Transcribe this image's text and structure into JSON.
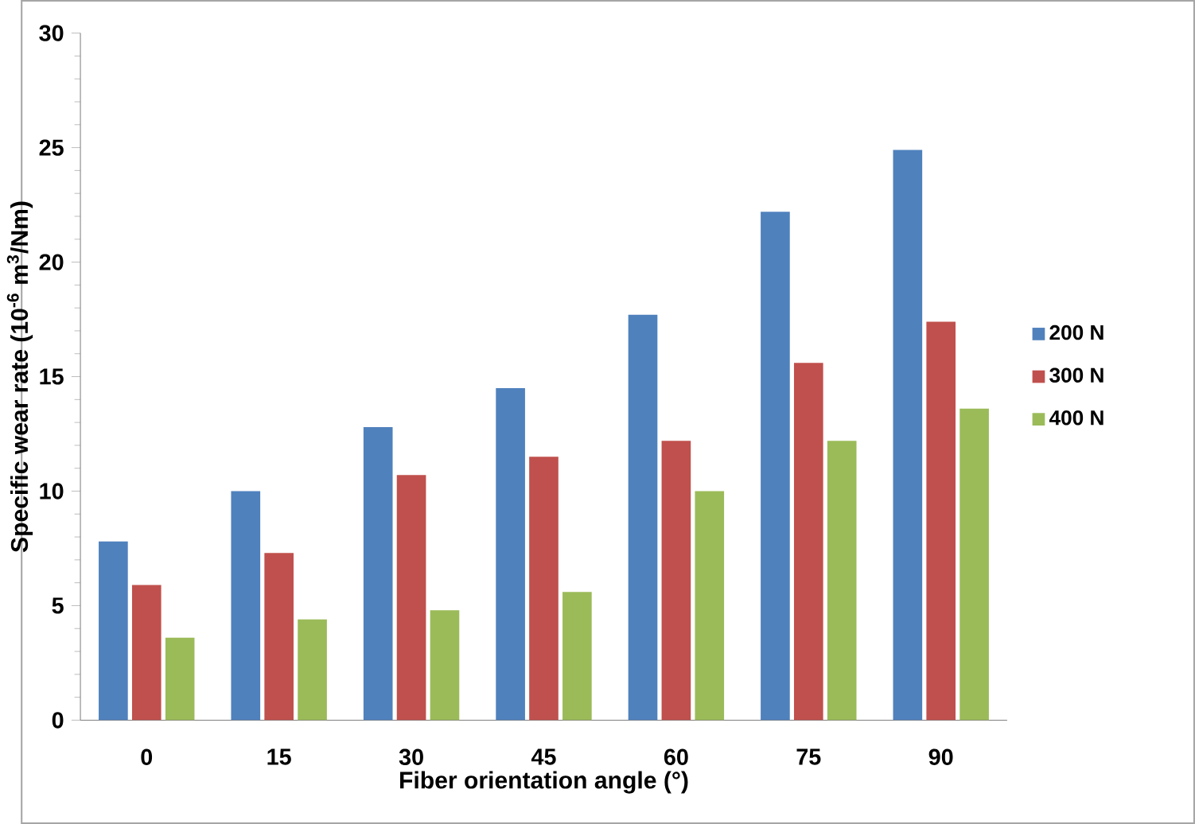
{
  "chart_data": {
    "type": "bar",
    "xlabel": "Fiber orientation angle (°)",
    "ylabel": "Specific wear rate (10$^{-6}$ m$^{3}$/Nm)",
    "categories": [
      "0",
      "15",
      "30",
      "45",
      "60",
      "75",
      "90"
    ],
    "series": [
      {
        "name": "200 N",
        "color": "#4f81bd",
        "values": [
          7.8,
          10.0,
          12.8,
          14.5,
          17.7,
          22.2,
          24.9
        ]
      },
      {
        "name": "300 N",
        "color": "#c0504d",
        "values": [
          5.9,
          7.3,
          10.7,
          11.5,
          12.2,
          15.6,
          17.4
        ]
      },
      {
        "name": "400 N",
        "color": "#9bbb59",
        "values": [
          3.6,
          4.4,
          4.8,
          5.6,
          10.0,
          12.2,
          13.6
        ]
      }
    ],
    "ylim": [
      0,
      30
    ],
    "yticks": [
      0,
      5,
      10,
      15,
      20,
      25,
      30
    ],
    "legend": "right"
  }
}
